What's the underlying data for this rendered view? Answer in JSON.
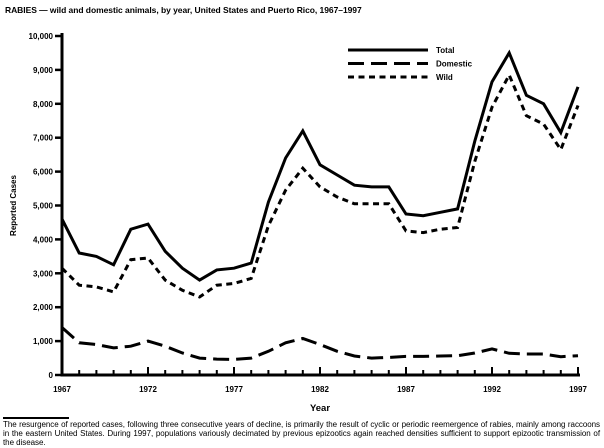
{
  "chart_data": {
    "type": "line",
    "title": "RABIES — wild and domestic animals, by year, United States and Puerto Rico, 1967–1997",
    "xlabel": "Year",
    "ylabel": "Reported Cases",
    "x": [
      1967,
      1968,
      1969,
      1970,
      1971,
      1972,
      1973,
      1974,
      1975,
      1976,
      1977,
      1978,
      1979,
      1980,
      1981,
      1982,
      1983,
      1984,
      1985,
      1986,
      1987,
      1988,
      1989,
      1990,
      1991,
      1992,
      1993,
      1994,
      1995,
      1996,
      1997
    ],
    "xtick_labels": [
      1967,
      1972,
      1977,
      1982,
      1987,
      1992,
      1997
    ],
    "ylim": [
      0,
      10000
    ],
    "ytick_step": 1000,
    "grid": false,
    "legend_position": "upper-right-inside",
    "line_color": "#000000",
    "series": [
      {
        "name": "Total",
        "line_style": "solid",
        "color": "#000000",
        "values": [
          4600,
          3600,
          3500,
          3250,
          4300,
          4450,
          3650,
          3150,
          2800,
          3100,
          3150,
          3300,
          5100,
          6400,
          7200,
          6200,
          5900,
          5600,
          5550,
          5550,
          4750,
          4700,
          4800,
          4900,
          6900,
          8650,
          9500,
          8250,
          8000,
          7150,
          8500
        ]
      },
      {
        "name": "Domestic",
        "line_style": "long-dash",
        "color": "#000000",
        "values": [
          1400,
          950,
          900,
          800,
          850,
          1000,
          850,
          650,
          500,
          470,
          460,
          500,
          700,
          950,
          1080,
          900,
          700,
          560,
          500,
          520,
          550,
          550,
          560,
          570,
          650,
          770,
          640,
          620,
          620,
          540,
          570
        ]
      },
      {
        "name": "Wild",
        "line_style": "short-dash",
        "color": "#000000",
        "values": [
          3150,
          2650,
          2600,
          2450,
          3400,
          3450,
          2800,
          2500,
          2300,
          2650,
          2700,
          2850,
          4400,
          5450,
          6100,
          5550,
          5250,
          5050,
          5050,
          5050,
          4250,
          4200,
          4300,
          4350,
          6300,
          7900,
          8850,
          7650,
          7400,
          6650,
          7950
        ]
      }
    ]
  },
  "footnote": {
    "text": "The resurgence of reported cases, following three consecutive years of decline, is primarily the result of cyclic or periodic reemergence of rabies, mainly among raccoons in the eastern United States. During 1997, populations variously decimated by previous epizootics again reached densities sufficient to support epizootic transmission of the disease."
  }
}
